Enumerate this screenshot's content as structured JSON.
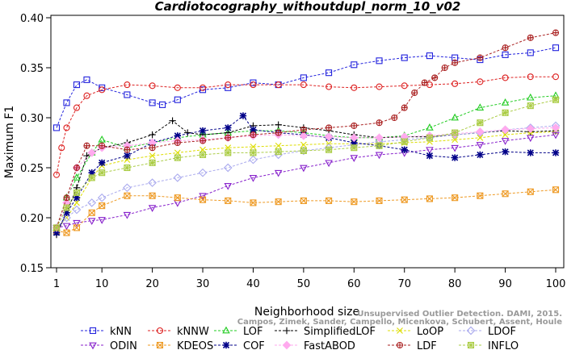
{
  "chart_data": {
    "type": "line",
    "title": "Cardiotocography_withoutdupl_norm_10_v02",
    "xlabel": "Neighborhood size",
    "ylabel": "Maximum F1",
    "xlim": [
      1,
      100
    ],
    "ylim": [
      0.15,
      0.4
    ],
    "xticks": [
      1,
      10,
      20,
      30,
      40,
      50,
      60,
      70,
      80,
      90,
      100
    ],
    "yticks": [
      "0.15",
      "0.20",
      "0.25",
      "0.30",
      "0.35",
      "0.40"
    ],
    "grid": false,
    "legend_position": "bottom",
    "watermark": {
      "line1": "Unsupervised Outlier Detection. DAMI, 2015.",
      "line2": "Campos, Zimek, Sander, Campello, Micenkova, Schubert, Assent, Houle"
    },
    "series": [
      {
        "name": "kNN",
        "color": "#2222dd",
        "marker": "square",
        "x": [
          1,
          3,
          5,
          7,
          10,
          15,
          20,
          22,
          25,
          30,
          35,
          40,
          45,
          50,
          55,
          60,
          65,
          70,
          75,
          80,
          85,
          90,
          95,
          100
        ],
        "y": [
          0.29,
          0.315,
          0.333,
          0.338,
          0.33,
          0.323,
          0.315,
          0.313,
          0.318,
          0.328,
          0.33,
          0.335,
          0.333,
          0.34,
          0.345,
          0.353,
          0.357,
          0.36,
          0.362,
          0.36,
          0.358,
          0.363,
          0.365,
          0.37
        ]
      },
      {
        "name": "kNNW",
        "color": "#dd2222",
        "marker": "circle",
        "x": [
          1,
          2,
          3,
          5,
          7,
          10,
          15,
          20,
          25,
          30,
          35,
          40,
          45,
          50,
          55,
          60,
          65,
          70,
          75,
          80,
          85,
          90,
          95,
          100
        ],
        "y": [
          0.243,
          0.27,
          0.29,
          0.31,
          0.322,
          0.328,
          0.333,
          0.332,
          0.33,
          0.33,
          0.333,
          0.333,
          0.333,
          0.333,
          0.331,
          0.33,
          0.331,
          0.332,
          0.333,
          0.334,
          0.336,
          0.34,
          0.341,
          0.341
        ]
      },
      {
        "name": "LOF",
        "color": "#22cc22",
        "marker": "triangle-up",
        "x": [
          1,
          3,
          5,
          8,
          10,
          15,
          20,
          25,
          30,
          35,
          40,
          45,
          50,
          55,
          60,
          65,
          70,
          75,
          80,
          85,
          90,
          95,
          100
        ],
        "y": [
          0.19,
          0.22,
          0.24,
          0.265,
          0.278,
          0.27,
          0.275,
          0.28,
          0.283,
          0.285,
          0.287,
          0.287,
          0.285,
          0.282,
          0.28,
          0.28,
          0.282,
          0.29,
          0.3,
          0.31,
          0.315,
          0.32,
          0.322
        ]
      },
      {
        "name": "SimplifiedLOF",
        "color": "#000000",
        "marker": "plus",
        "x": [
          1,
          3,
          5,
          7,
          10,
          15,
          20,
          24,
          27,
          30,
          35,
          40,
          45,
          50,
          55,
          60,
          65,
          70,
          75,
          80,
          85,
          90,
          95,
          100
        ],
        "y": [
          0.183,
          0.205,
          0.23,
          0.262,
          0.27,
          0.275,
          0.283,
          0.297,
          0.285,
          0.283,
          0.285,
          0.292,
          0.293,
          0.29,
          0.287,
          0.283,
          0.28,
          0.281,
          0.281,
          0.283,
          0.285,
          0.287,
          0.286,
          0.287
        ]
      },
      {
        "name": "LoOP",
        "color": "#dddd00",
        "marker": "x",
        "x": [
          1,
          3,
          5,
          8,
          10,
          15,
          20,
          25,
          30,
          35,
          40,
          45,
          50,
          55,
          60,
          65,
          70,
          75,
          80,
          85,
          90,
          95,
          100
        ],
        "y": [
          0.19,
          0.2,
          0.215,
          0.24,
          0.252,
          0.258,
          0.262,
          0.265,
          0.268,
          0.27,
          0.271,
          0.272,
          0.273,
          0.274,
          0.274,
          0.274,
          0.275,
          0.276,
          0.278,
          0.28,
          0.283,
          0.285,
          0.286
        ]
      },
      {
        "name": "LDOF",
        "color": "#aaaaee",
        "marker": "diamond",
        "x": [
          1,
          3,
          5,
          8,
          10,
          15,
          20,
          25,
          30,
          35,
          40,
          45,
          50,
          55,
          60,
          65,
          70,
          75,
          80,
          85,
          90,
          95,
          100
        ],
        "y": [
          0.19,
          0.2,
          0.208,
          0.215,
          0.22,
          0.23,
          0.235,
          0.24,
          0.245,
          0.25,
          0.258,
          0.263,
          0.267,
          0.27,
          0.273,
          0.276,
          0.278,
          0.28,
          0.283,
          0.285,
          0.288,
          0.29,
          0.292
        ]
      },
      {
        "name": "ODIN",
        "color": "#8822cc",
        "marker": "triangle-down",
        "x": [
          1,
          3,
          5,
          8,
          10,
          15,
          20,
          25,
          30,
          35,
          40,
          45,
          50,
          55,
          60,
          65,
          70,
          75,
          80,
          85,
          90,
          95,
          100
        ],
        "y": [
          0.19,
          0.192,
          0.195,
          0.197,
          0.198,
          0.203,
          0.21,
          0.215,
          0.222,
          0.232,
          0.24,
          0.245,
          0.25,
          0.255,
          0.26,
          0.263,
          0.265,
          0.268,
          0.27,
          0.273,
          0.277,
          0.28,
          0.283
        ]
      },
      {
        "name": "KDEOS",
        "color": "#ee9922",
        "marker": "square-x",
        "x": [
          1,
          3,
          5,
          8,
          10,
          15,
          20,
          25,
          30,
          35,
          40,
          45,
          50,
          55,
          60,
          65,
          70,
          75,
          80,
          85,
          90,
          95,
          100
        ],
        "y": [
          0.187,
          0.185,
          0.19,
          0.205,
          0.212,
          0.222,
          0.222,
          0.22,
          0.218,
          0.217,
          0.215,
          0.216,
          0.217,
          0.217,
          0.216,
          0.217,
          0.218,
          0.219,
          0.22,
          0.222,
          0.224,
          0.226,
          0.228
        ]
      },
      {
        "name": "COF",
        "color": "#000088",
        "marker": "asterisk",
        "x": [
          1,
          3,
          5,
          8,
          10,
          15,
          20,
          25,
          30,
          35,
          38,
          40,
          45,
          50,
          55,
          60,
          65,
          70,
          75,
          80,
          85,
          90,
          95,
          100
        ],
        "y": [
          0.185,
          0.205,
          0.22,
          0.245,
          0.255,
          0.262,
          0.275,
          0.282,
          0.287,
          0.29,
          0.302,
          0.288,
          0.285,
          0.283,
          0.28,
          0.275,
          0.272,
          0.268,
          0.262,
          0.26,
          0.263,
          0.266,
          0.265,
          0.265
        ]
      },
      {
        "name": "FastABOD",
        "color": "#ffaaee",
        "marker": "diamond-filled",
        "x": [
          1,
          3,
          5,
          8,
          10,
          15,
          20,
          25,
          30,
          35,
          40,
          45,
          50,
          55,
          60,
          65,
          70,
          75,
          80,
          85,
          90,
          95,
          100
        ],
        "y": [
          0.19,
          0.215,
          0.25,
          0.265,
          0.27,
          0.272,
          0.275,
          0.277,
          0.278,
          0.28,
          0.282,
          0.283,
          0.282,
          0.281,
          0.28,
          0.28,
          0.281,
          0.282,
          0.284,
          0.286,
          0.288,
          0.289,
          0.29
        ]
      },
      {
        "name": "LDF",
        "color": "#aa2222",
        "marker": "circle-plus",
        "x": [
          1,
          3,
          5,
          7,
          10,
          15,
          20,
          25,
          30,
          35,
          40,
          45,
          50,
          55,
          60,
          65,
          68,
          70,
          72,
          74,
          76,
          78,
          80,
          85,
          90,
          95,
          100
        ],
        "y": [
          0.19,
          0.22,
          0.25,
          0.272,
          0.272,
          0.268,
          0.27,
          0.275,
          0.277,
          0.28,
          0.283,
          0.285,
          0.288,
          0.29,
          0.292,
          0.295,
          0.3,
          0.31,
          0.325,
          0.335,
          0.34,
          0.35,
          0.355,
          0.36,
          0.37,
          0.38,
          0.385
        ]
      },
      {
        "name": "INFLO",
        "color": "#aacc44",
        "marker": "square-asterisk",
        "x": [
          1,
          3,
          5,
          8,
          10,
          15,
          20,
          25,
          30,
          35,
          40,
          45,
          50,
          55,
          60,
          65,
          70,
          75,
          80,
          85,
          90,
          95,
          100
        ],
        "y": [
          0.19,
          0.21,
          0.225,
          0.24,
          0.245,
          0.25,
          0.255,
          0.26,
          0.263,
          0.265,
          0.265,
          0.266,
          0.267,
          0.268,
          0.27,
          0.272,
          0.276,
          0.28,
          0.285,
          0.295,
          0.305,
          0.312,
          0.318
        ]
      }
    ]
  }
}
